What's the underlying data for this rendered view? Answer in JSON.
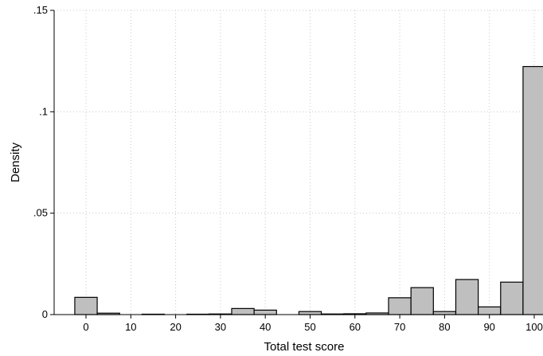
{
  "chart_data": {
    "type": "bar",
    "xlabel": "Total test score",
    "ylabel": "Density",
    "xlim": [
      -5,
      102
    ],
    "ylim": [
      0,
      0.15
    ],
    "x_ticks": [
      0,
      10,
      20,
      30,
      40,
      50,
      60,
      70,
      80,
      90,
      100
    ],
    "y_ticks": [
      {
        "value": 0,
        "label": "0"
      },
      {
        "value": 0.05,
        "label": ".05"
      },
      {
        "value": 0.1,
        "label": ".1"
      },
      {
        "value": 0.15,
        "label": ".15"
      }
    ],
    "grid": true,
    "bar_color": "#bfbfbf",
    "bin_width": 5,
    "bins": [
      {
        "start": -2.5,
        "value": 0.0085
      },
      {
        "start": 2.5,
        "value": 0.0007
      },
      {
        "start": 7.5,
        "value": 0.0
      },
      {
        "start": 12.5,
        "value": 0.0002
      },
      {
        "start": 17.5,
        "value": 0.0
      },
      {
        "start": 22.5,
        "value": 0.0002
      },
      {
        "start": 27.5,
        "value": 0.0003
      },
      {
        "start": 32.5,
        "value": 0.003
      },
      {
        "start": 37.5,
        "value": 0.0022
      },
      {
        "start": 42.5,
        "value": 0.0
      },
      {
        "start": 47.5,
        "value": 0.0015
      },
      {
        "start": 52.5,
        "value": 0.0003
      },
      {
        "start": 57.5,
        "value": 0.0004
      },
      {
        "start": 62.5,
        "value": 0.0008
      },
      {
        "start": 67.5,
        "value": 0.0083
      },
      {
        "start": 72.5,
        "value": 0.0133
      },
      {
        "start": 77.5,
        "value": 0.0015
      },
      {
        "start": 82.5,
        "value": 0.0173
      },
      {
        "start": 87.5,
        "value": 0.0038
      },
      {
        "start": 92.5,
        "value": 0.016
      },
      {
        "start": 97.5,
        "value": 0.1223
      }
    ]
  }
}
